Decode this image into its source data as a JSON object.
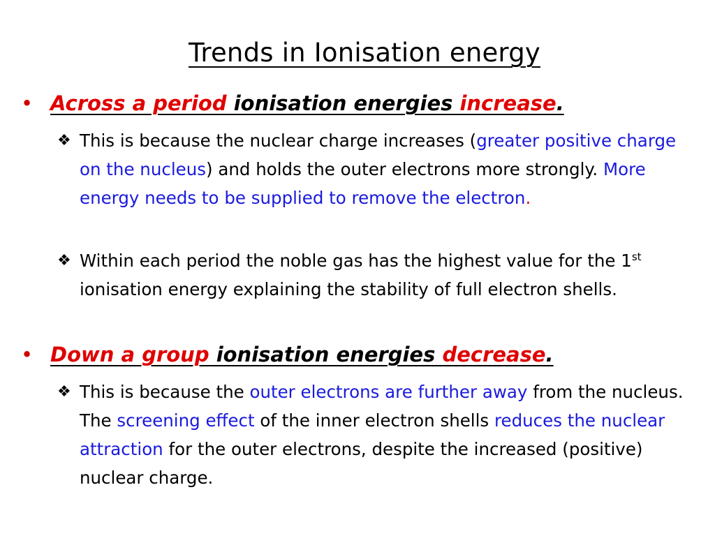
{
  "title": "Trends in Ionisation energy",
  "bullets": [
    {
      "marker": "•",
      "lead": "Across a period",
      "middle": " ionisation energies ",
      "key": "increase",
      "end": ".",
      "subs": [
        {
          "marker": "❖",
          "t1": "This is because the nuclear charge increases (",
          "t2": "greater positive charge on the nucleus",
          "t3": ") and holds the outer electrons more strongly. ",
          "t4": "More energy needs to be supplied to remove the electron",
          "t5": "."
        },
        {
          "marker": "❖",
          "t1": "Within each period the noble gas has the highest value for the 1",
          "sup": "st",
          "t2": " ionisation energy explaining the stability of full electron shells."
        }
      ]
    },
    {
      "marker": "•",
      "lead": "Down a group",
      "middle": " ionisation energies ",
      "key": "decrease",
      "end": ".",
      "subs": [
        {
          "marker": "❖",
          "t1": "This is because the ",
          "t2": "outer electrons are further away",
          "t3": " from the nucleus. The ",
          "t4": "screening effect",
          "t5": " of the inner electron shells ",
          "t6": "reduces the nuclear attraction",
          "t7": " for the outer electrons, despite the increased (positive) nuclear charge."
        }
      ]
    }
  ],
  "colors": {
    "red": "#e00000",
    "blue": "#1a1adc",
    "text": "#000000",
    "background": "#ffffff"
  }
}
